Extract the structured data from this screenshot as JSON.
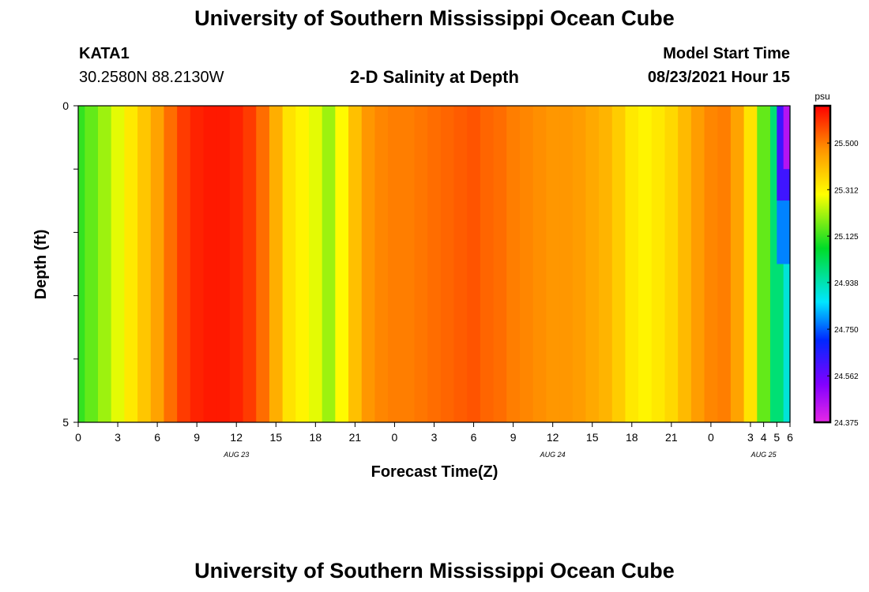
{
  "header": {
    "main_title": "University of Southern Mississippi Ocean Cube",
    "station_id": "KATA1",
    "coordinates": "30.2580N  88.2130W",
    "chart_title": "2-D Salinity at Depth",
    "model_start_label": "Model Start Time",
    "model_start_value": "08/23/2021 Hour 15"
  },
  "footer": {
    "title": "University of Southern Mississippi Ocean Cube"
  },
  "chart_data": {
    "type": "heatmap",
    "title": "2-D Salinity at Depth",
    "xlabel": "Forecast Time(Z)",
    "ylabel": "Depth (ft)",
    "ylim": [
      0,
      5
    ],
    "y_ticks": [
      "0",
      "5"
    ],
    "x_ticks": [
      "0",
      "3",
      "6",
      "9",
      "12",
      "15",
      "18",
      "21",
      "0",
      "3",
      "6",
      "9",
      "12",
      "15",
      "18",
      "21",
      "0",
      "3",
      "4",
      "5",
      "6"
    ],
    "x_tick_hours": [
      0,
      3,
      6,
      9,
      12,
      15,
      18,
      21,
      24,
      27,
      30,
      33,
      36,
      39,
      42,
      45,
      48,
      51,
      52,
      53,
      54
    ],
    "date_labels": [
      {
        "text": "AUG 23",
        "hour": 12
      },
      {
        "text": "AUG 24",
        "hour": 36
      },
      {
        "text": "AUG 25",
        "hour": 52
      }
    ],
    "colorbar": {
      "unit": "psu",
      "min": 24.375,
      "max": 25.65,
      "tick_labels": [
        "25.500",
        "25.312",
        "25.125",
        "24.938",
        "24.750",
        "24.562",
        "24.375"
      ],
      "tick_values": [
        25.5,
        25.312,
        25.125,
        24.938,
        24.75,
        24.562,
        24.375
      ]
    },
    "time_hours": [
      0,
      1,
      2,
      3,
      4,
      5,
      6,
      7,
      8,
      9,
      10,
      11,
      12,
      13,
      14,
      15,
      16,
      17,
      18,
      19,
      20,
      21,
      22,
      23,
      24,
      25,
      26,
      27,
      28,
      29,
      30,
      31,
      32,
      33,
      34,
      35,
      36,
      37,
      38,
      39,
      40,
      41,
      42,
      43,
      44,
      45,
      46,
      47,
      48,
      49,
      50,
      51,
      52,
      53,
      54
    ],
    "salinity_profile": [
      25.12,
      25.16,
      25.21,
      25.27,
      25.33,
      25.39,
      25.45,
      25.52,
      25.58,
      25.61,
      25.62,
      25.62,
      25.61,
      25.58,
      25.52,
      25.43,
      25.34,
      25.31,
      25.27,
      25.21,
      25.3,
      25.4,
      25.47,
      25.49,
      25.5,
      25.5,
      25.51,
      25.52,
      25.53,
      25.54,
      25.55,
      25.53,
      25.52,
      25.5,
      25.49,
      25.48,
      25.47,
      25.47,
      25.46,
      25.44,
      25.42,
      25.38,
      25.33,
      25.31,
      25.33,
      25.36,
      25.41,
      25.46,
      25.49,
      25.5,
      25.45,
      25.34,
      25.16,
      25.0,
      24.9
    ],
    "surface_anomaly": [
      {
        "hour": 53.5,
        "depth_range": [
          0,
          1.5
        ],
        "value": 24.62
      },
      {
        "hour": 53.5,
        "depth_range": [
          1.5,
          2.5
        ],
        "value": 24.78
      },
      {
        "hour": 54,
        "depth_range": [
          0,
          1.0
        ],
        "value": 24.45
      }
    ]
  }
}
